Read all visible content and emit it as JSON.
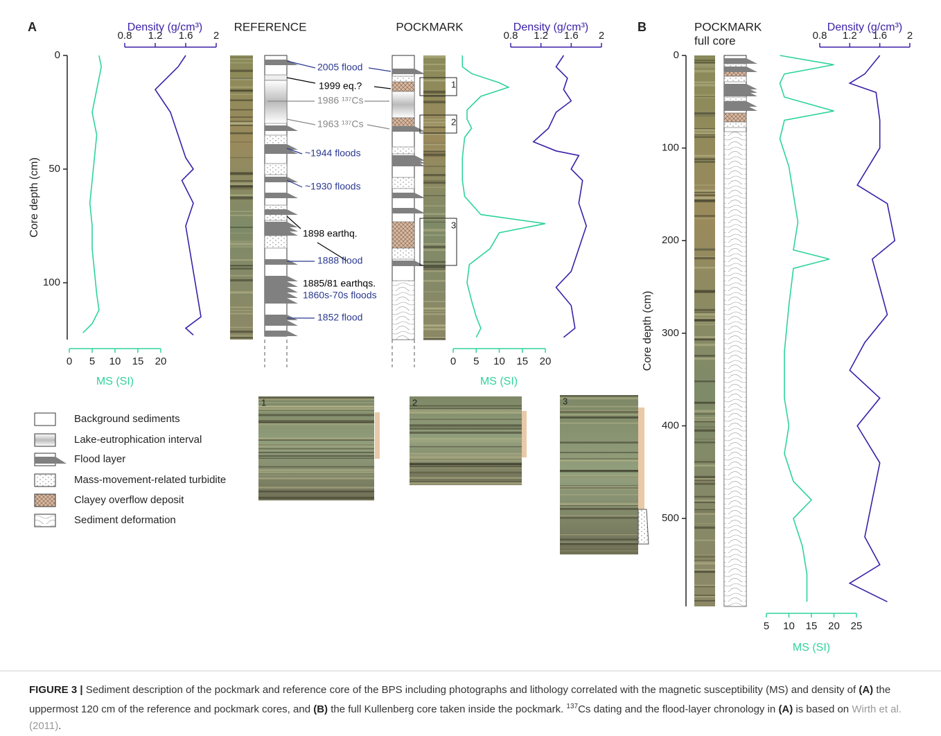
{
  "panel_a": {
    "label": "A",
    "reference_title": "REFERENCE",
    "pockmark_title": "POCKMARK",
    "depth_axis": {
      "label": "Core depth (cm)",
      "ylim": [
        0,
        125
      ],
      "yticks": [
        0,
        50,
        100
      ]
    },
    "ms_axis": {
      "label": "MS (SI)",
      "xlim": [
        0,
        20
      ],
      "xticks": [
        0,
        5,
        10,
        15,
        20
      ]
    },
    "density_axis": {
      "label": "Density (g/cm³)",
      "xlim": [
        0.8,
        2
      ],
      "xticks": [
        0.8,
        1.2,
        1.6,
        2
      ]
    },
    "reference_ms": {
      "color": "#2fd39b",
      "depth": [
        0,
        5,
        15,
        25,
        35,
        45,
        55,
        65,
        75,
        85,
        95,
        105,
        112,
        118,
        122
      ],
      "values": [
        6.5,
        7,
        6,
        5,
        6,
        5.5,
        5,
        4.5,
        5,
        5,
        5.5,
        6,
        6.5,
        5,
        3
      ]
    },
    "reference_density": {
      "color": "#3a1fa8",
      "depth": [
        0,
        5,
        15,
        25,
        35,
        45,
        50,
        55,
        65,
        75,
        85,
        95,
        105,
        115,
        120,
        123
      ],
      "values": [
        1.6,
        1.5,
        1.2,
        1.4,
        1.5,
        1.6,
        1.7,
        1.55,
        1.7,
        1.6,
        1.65,
        1.7,
        1.75,
        1.8,
        1.6,
        1.7
      ]
    },
    "pockmark_ms": {
      "color": "#2fd39b",
      "depth": [
        0,
        5,
        8,
        12,
        14,
        18,
        24,
        28,
        32,
        36,
        45,
        55,
        62,
        70,
        74,
        78,
        85,
        92,
        100,
        108,
        115,
        120,
        124
      ],
      "values": [
        2,
        2,
        4,
        10,
        12,
        6,
        3,
        3,
        4,
        2.5,
        2,
        2,
        2.5,
        6,
        20,
        10,
        8,
        3.5,
        3,
        4,
        5,
        6,
        5
      ]
    },
    "pockmark_density": {
      "color": "#3a1fa8",
      "depth": [
        0,
        5,
        10,
        15,
        20,
        25,
        32,
        38,
        42,
        44,
        50,
        55,
        65,
        75,
        85,
        95,
        102,
        110,
        120,
        124
      ],
      "values": [
        1.5,
        1.4,
        1.55,
        1.5,
        1.6,
        1.4,
        1.3,
        1.1,
        1.4,
        1.7,
        1.6,
        1.75,
        1.7,
        1.8,
        1.7,
        1.6,
        1.4,
        1.6,
        1.65,
        1.5
      ]
    },
    "annotations": [
      {
        "text": "2005 flood",
        "color": "#2b3990"
      },
      {
        "text": "1999 eq.?",
        "color": "#000000"
      },
      {
        "text": "1986 ¹³⁷Cs",
        "color": "#888888"
      },
      {
        "text": "1963 ¹³⁷Cs",
        "color": "#888888"
      },
      {
        "text": "~1944 floods",
        "color": "#2b3990"
      },
      {
        "text": "~1930 floods",
        "color": "#2b3990"
      },
      {
        "text": "1898 earthq.",
        "color": "#000000"
      },
      {
        "text": "1888 flood",
        "color": "#2b3990"
      },
      {
        "text": "1885/81 earthqs.",
        "color": "#000000"
      },
      {
        "text": "1860s-70s floods",
        "color": "#2b3990"
      },
      {
        "text": "1852 flood",
        "color": "#2b3990"
      }
    ],
    "boxes": [
      "1",
      "2",
      "3"
    ]
  },
  "legend": [
    "Background sediments",
    "Lake-eutrophication interval",
    "Flood layer",
    "Mass-movement-related turbidite",
    "Clayey overflow deposit",
    "Sediment deformation"
  ],
  "zoom_labels": [
    "1",
    "2",
    "3"
  ],
  "panel_b": {
    "label": "B",
    "title": [
      "POCKMARK",
      "full core"
    ],
    "depth_axis": {
      "label": "Core depth (cm)",
      "ylim": [
        0,
        595
      ],
      "yticks": [
        0,
        100,
        200,
        300,
        400,
        500
      ]
    },
    "ms_axis": {
      "label": "MS (SI)",
      "xlim": [
        5,
        25
      ],
      "xticks": [
        5,
        10,
        15,
        20,
        25
      ]
    },
    "density_axis": {
      "label": "Density (g/cm³)",
      "xlim": [
        0.8,
        2
      ],
      "xticks": [
        0.8,
        1.2,
        1.6,
        2
      ]
    },
    "ms": {
      "color": "#2fd39b",
      "depth": [
        0,
        10,
        20,
        30,
        45,
        60,
        70,
        90,
        120,
        150,
        180,
        210,
        220,
        230,
        270,
        320,
        370,
        400,
        430,
        460,
        480,
        500,
        530,
        560,
        590
      ],
      "values": [
        8,
        20,
        9,
        8,
        9,
        20,
        9,
        8,
        10,
        11,
        12,
        11,
        19,
        11,
        10,
        9,
        9,
        10,
        9,
        11,
        15,
        11,
        13,
        14,
        14
      ]
    },
    "density": {
      "color": "#3a1fa8",
      "depth": [
        0,
        20,
        30,
        40,
        70,
        100,
        140,
        160,
        200,
        220,
        250,
        280,
        310,
        340,
        370,
        400,
        440,
        480,
        520,
        550,
        570,
        590
      ],
      "values": [
        1.6,
        1.4,
        1.2,
        1.55,
        1.6,
        1.6,
        1.3,
        1.7,
        1.8,
        1.5,
        1.6,
        1.7,
        1.4,
        1.2,
        1.6,
        1.3,
        1.6,
        1.5,
        1.4,
        1.6,
        1.2,
        1.7
      ]
    }
  },
  "caption": [
    "FIGURE 3 |",
    " Sediment description of the pockmark and reference core of the BPS including photographs and lithology correlated with the magnetic susceptibility (MS) and density of ",
    "(A)",
    " the uppermost 120 cm of the reference and pockmark cores, and ",
    "(B)",
    " the full Kullenberg core taken inside the pockmark. ",
    "137",
    "Cs dating and the flood-layer chronology in ",
    "(A)",
    " is based on ",
    "Wirth et al. (2011)",
    "."
  ]
}
